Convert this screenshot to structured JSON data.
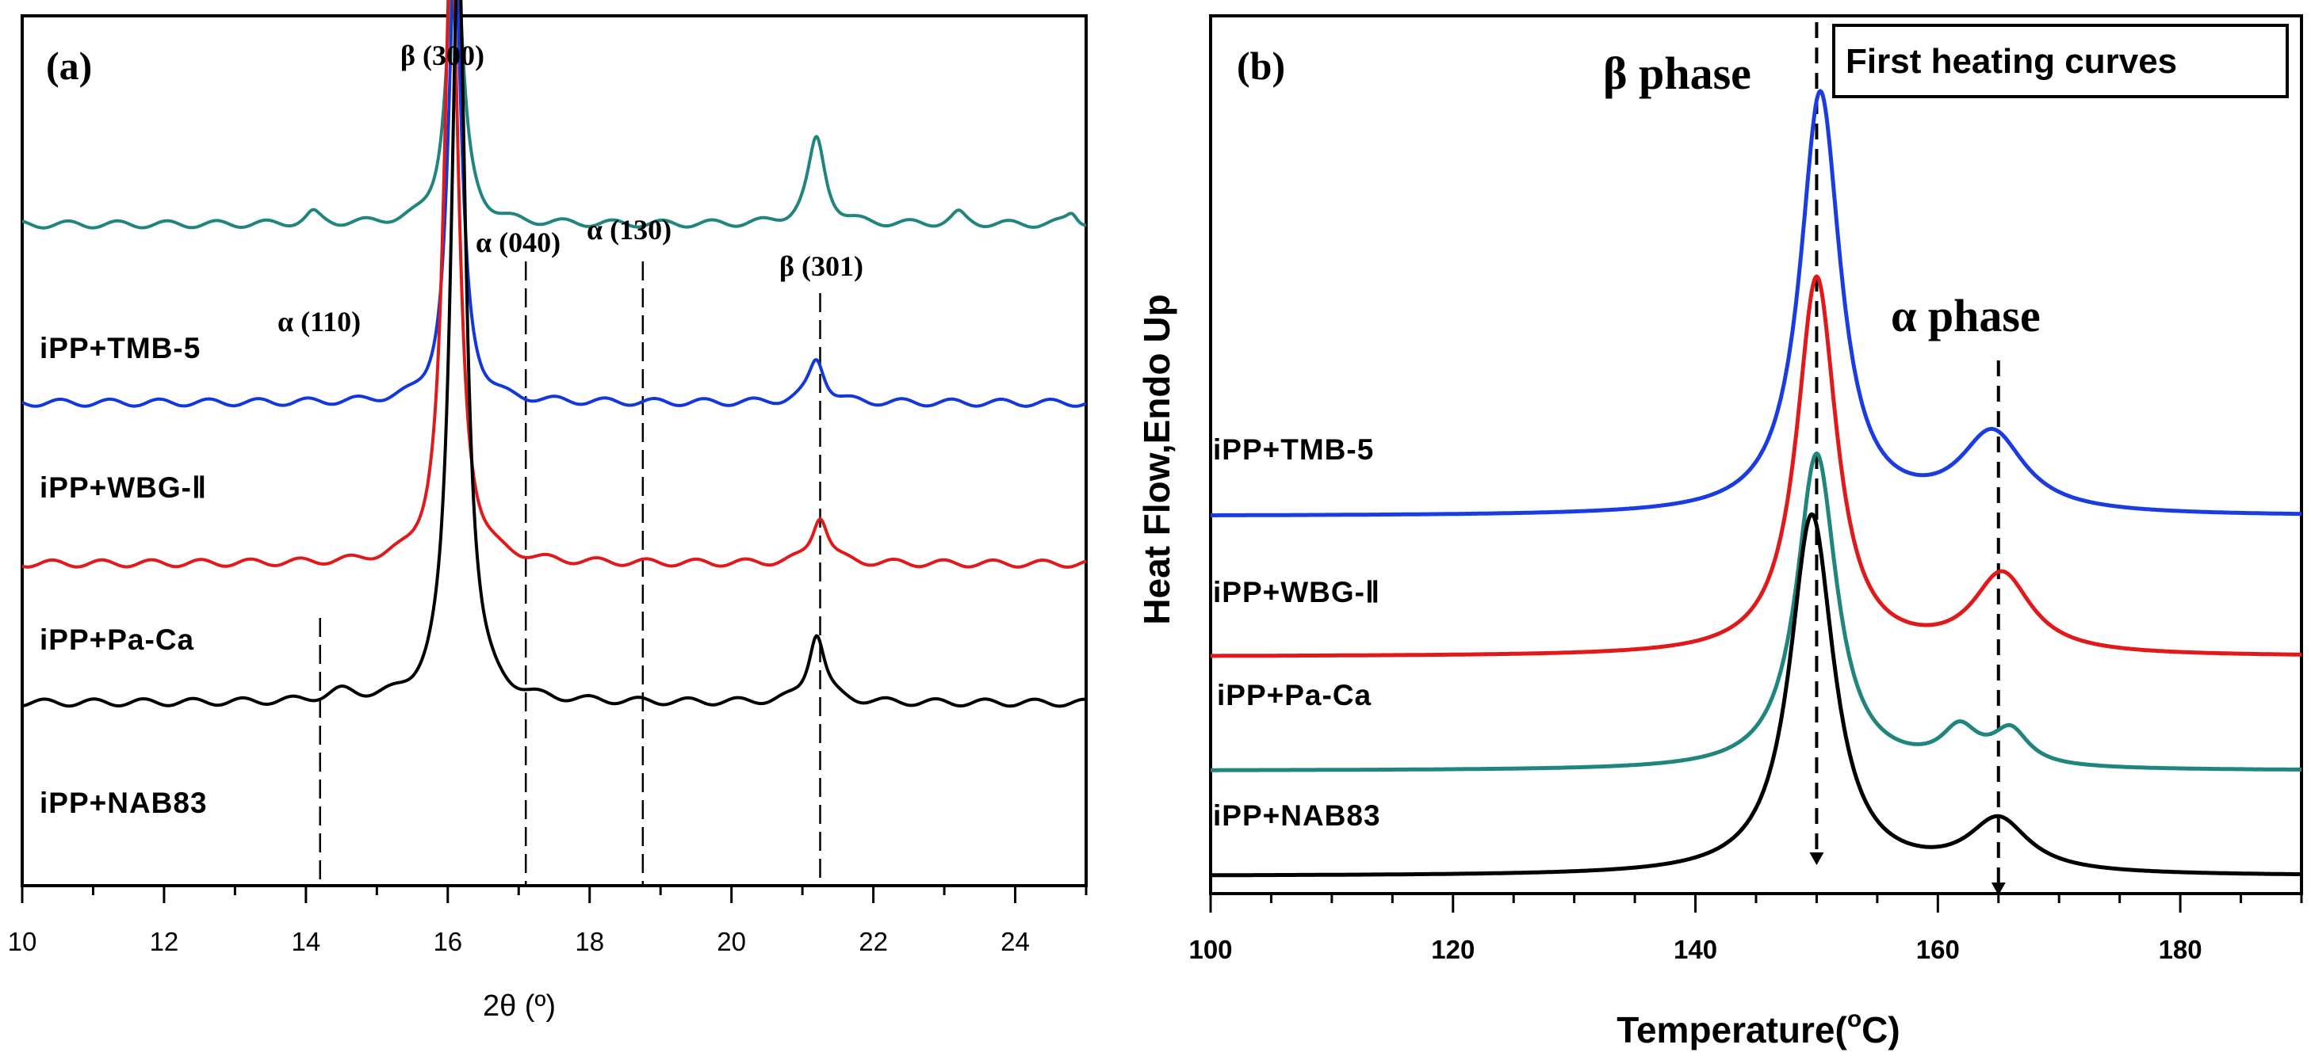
{
  "chart_data": [
    {
      "type": "line",
      "panel_label": "(a)",
      "title": "",
      "xlabel": "2θ (º)",
      "ylabel": "",
      "xlim": [
        10,
        25
      ],
      "xticks": [
        "10",
        "12",
        "14",
        "16",
        "18",
        "20",
        "22",
        "24"
      ],
      "series": [
        {
          "name": "iPP+TMB-5",
          "color": "#1f857d",
          "baseline": 0.76,
          "peaks": [
            [
              14.1,
              0.012,
              0.12
            ],
            [
              16.1,
              0.34,
              0.13
            ],
            [
              21.2,
              0.098,
              0.15
            ],
            [
              23.2,
              0.012,
              0.12
            ],
            [
              24.8,
              0.013,
              0.1
            ]
          ]
        },
        {
          "name": "iPP+WBG-Ⅱ",
          "color": "#1238d8",
          "baseline": 0.555,
          "peaks": [
            [
              16.1,
              0.5,
              0.12
            ],
            [
              21.2,
              0.05,
              0.14
            ]
          ]
        },
        {
          "name": "iPP+Pa-Ca",
          "color": "#e0191a",
          "baseline": 0.37,
          "peaks": [
            [
              16.05,
              0.72,
              0.13
            ],
            [
              21.25,
              0.055,
              0.14
            ]
          ]
        },
        {
          "name": "iPP+NAB83",
          "color": "#000000",
          "baseline": 0.21,
          "peaks": [
            [
              14.5,
              0.01,
              0.25
            ],
            [
              16.15,
              0.87,
              0.13
            ],
            [
              21.2,
              0.08,
              0.14
            ]
          ]
        }
      ],
      "annotations": [
        {
          "text": "α (110)",
          "x": 14.2
        },
        {
          "text": "β (300)",
          "x": 16.1
        },
        {
          "text": "α (040)",
          "x": 17.1
        },
        {
          "text": "α (130)",
          "x": 18.75
        },
        {
          "text": "β (301)",
          "x": 21.25
        }
      ]
    },
    {
      "type": "line",
      "panel_label": "(b)",
      "title": "First heating curves",
      "xlabel": "Temperature(°C)",
      "xlabel_main": "Temperature(",
      "xlabel_deg": "o",
      "xlabel_unit": "C)",
      "ylabel": "Heat Flow,Endo Up",
      "xlim": [
        100,
        190
      ],
      "xticks": [
        "100",
        "120",
        "140",
        "160",
        "180"
      ],
      "series": [
        {
          "name": "iPP+TMB-5",
          "color": "#1a3ce0",
          "baseline": 0.43,
          "peaks": [
            [
              150.3,
              0.48,
              2.0
            ],
            [
              164.5,
              0.09,
              3.2
            ]
          ]
        },
        {
          "name": "iPP+WBG-Ⅱ",
          "color": "#e0191a",
          "baseline": 0.27,
          "peaks": [
            [
              150.0,
              0.43,
              2.0
            ],
            [
              165.3,
              0.09,
              2.9
            ]
          ]
        },
        {
          "name": "iPP+Pa-Ca",
          "color": "#1f857d",
          "baseline": 0.14,
          "peaks": [
            [
              150.0,
              0.36,
              2.0
            ],
            [
              161.8,
              0.04,
              1.8
            ],
            [
              166.0,
              0.04,
              1.8
            ]
          ]
        },
        {
          "name": "iPP+NAB83",
          "color": "#000000",
          "baseline": 0.02,
          "peaks": [
            [
              149.6,
              0.41,
              2.2
            ],
            [
              165.0,
              0.06,
              3.0
            ]
          ]
        }
      ],
      "annotations": [
        {
          "text": "β phase",
          "x": 150
        },
        {
          "text": "α phase",
          "x": 165
        }
      ]
    }
  ]
}
